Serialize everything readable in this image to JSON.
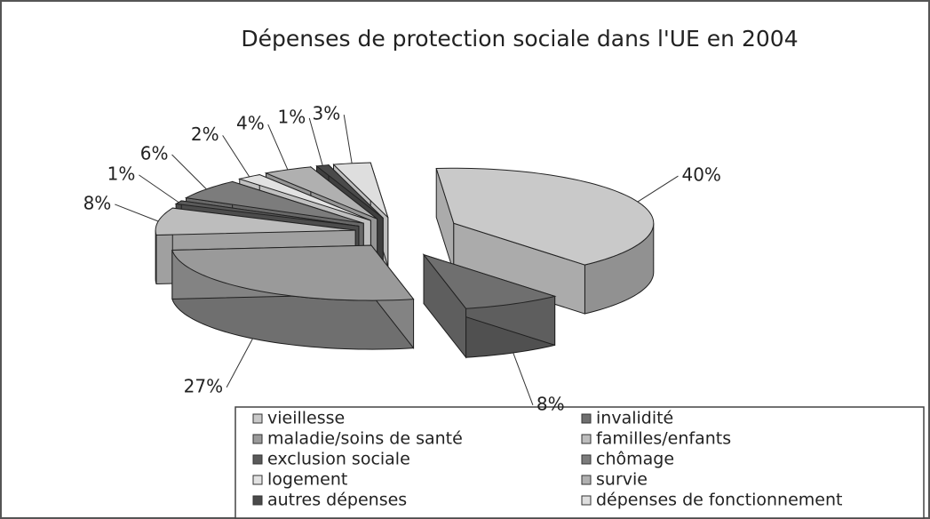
{
  "chart_data": {
    "type": "pie3d",
    "title": "Dépenses de protection sociale dans l'UE en 2004",
    "categories": [
      "vieillesse",
      "invalidité",
      "maladie/soins de santé",
      "familles/enfants",
      "exclusion sociale",
      "chômage",
      "logement",
      "survie",
      "autres dépenses",
      "dépenses de fonctionnement"
    ],
    "values": [
      40,
      8,
      27,
      8,
      1,
      6,
      2,
      4,
      1,
      3
    ],
    "value_labels": [
      "40%",
      "8%",
      "27%",
      "8%",
      "1%",
      "6%",
      "2%",
      "4%",
      "1%",
      "3%"
    ],
    "colors": [
      "#c9c9c9",
      "#6f6f6f",
      "#9a9a9a",
      "#bdbdbd",
      "#5a5a5a",
      "#7c7c7c",
      "#e2e2e2",
      "#b0b0b0",
      "#4a4a4a",
      "#dedede"
    ]
  }
}
